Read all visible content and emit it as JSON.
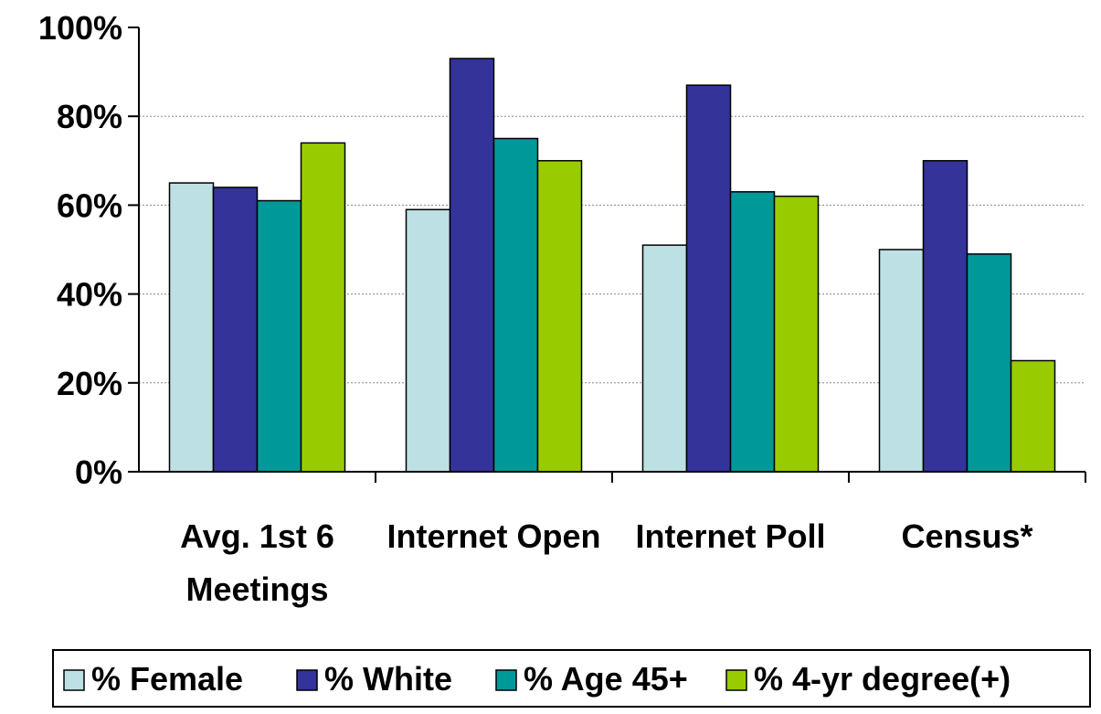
{
  "chart_data": {
    "type": "bar",
    "categories": [
      [
        "Avg. 1st 6",
        "Meetings"
      ],
      [
        "Internet Open"
      ],
      [
        "Internet Poll"
      ],
      [
        "Census*"
      ]
    ],
    "series": [
      {
        "name": "% Female",
        "color": "#bde0e4",
        "values": [
          65,
          59,
          51,
          50
        ]
      },
      {
        "name": "% White",
        "color": "#333399",
        "values": [
          64,
          93,
          87,
          70
        ]
      },
      {
        "name": "% Age 45+",
        "color": "#009999",
        "values": [
          61,
          75,
          63,
          49
        ]
      },
      {
        "name": "% 4-yr degree(+)",
        "color": "#99cc00",
        "values": [
          74,
          70,
          62,
          25
        ]
      }
    ],
    "y_ticks": [
      "0%",
      "20%",
      "40%",
      "60%",
      "80%",
      "100%"
    ],
    "ylim": [
      0,
      100
    ],
    "grid": "dotted horizontal",
    "legend_position": "bottom"
  }
}
